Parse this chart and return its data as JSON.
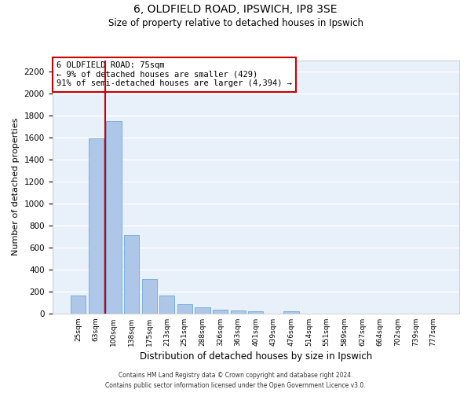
{
  "title1": "6, OLDFIELD ROAD, IPSWICH, IP8 3SE",
  "title2": "Size of property relative to detached houses in Ipswich",
  "xlabel": "Distribution of detached houses by size in Ipswich",
  "ylabel": "Number of detached properties",
  "footer1": "Contains HM Land Registry data © Crown copyright and database right 2024.",
  "footer2": "Contains public sector information licensed under the Open Government Licence v3.0.",
  "categories": [
    "25sqm",
    "63sqm",
    "100sqm",
    "138sqm",
    "175sqm",
    "213sqm",
    "251sqm",
    "288sqm",
    "326sqm",
    "363sqm",
    "401sqm",
    "439sqm",
    "476sqm",
    "514sqm",
    "551sqm",
    "589sqm",
    "627sqm",
    "664sqm",
    "702sqm",
    "739sqm",
    "777sqm"
  ],
  "values": [
    160,
    1590,
    1750,
    710,
    315,
    160,
    85,
    55,
    35,
    25,
    20,
    0,
    20,
    0,
    0,
    0,
    0,
    0,
    0,
    0,
    0
  ],
  "bar_color": "#aec6e8",
  "bar_edge_color": "#5a9fd4",
  "background_color": "#e8f0fa",
  "grid_color": "#ffffff",
  "vline_x": 1.5,
  "vline_color": "#cc0000",
  "annotation_line1": "6 OLDFIELD ROAD: 75sqm",
  "annotation_line2": "← 9% of detached houses are smaller (429)",
  "annotation_line3": "91% of semi-detached houses are larger (4,394) →",
  "annotation_box_color": "#cc0000",
  "ylim": [
    0,
    2300
  ],
  "yticks": [
    0,
    200,
    400,
    600,
    800,
    1000,
    1200,
    1400,
    1600,
    1800,
    2000,
    2200
  ]
}
